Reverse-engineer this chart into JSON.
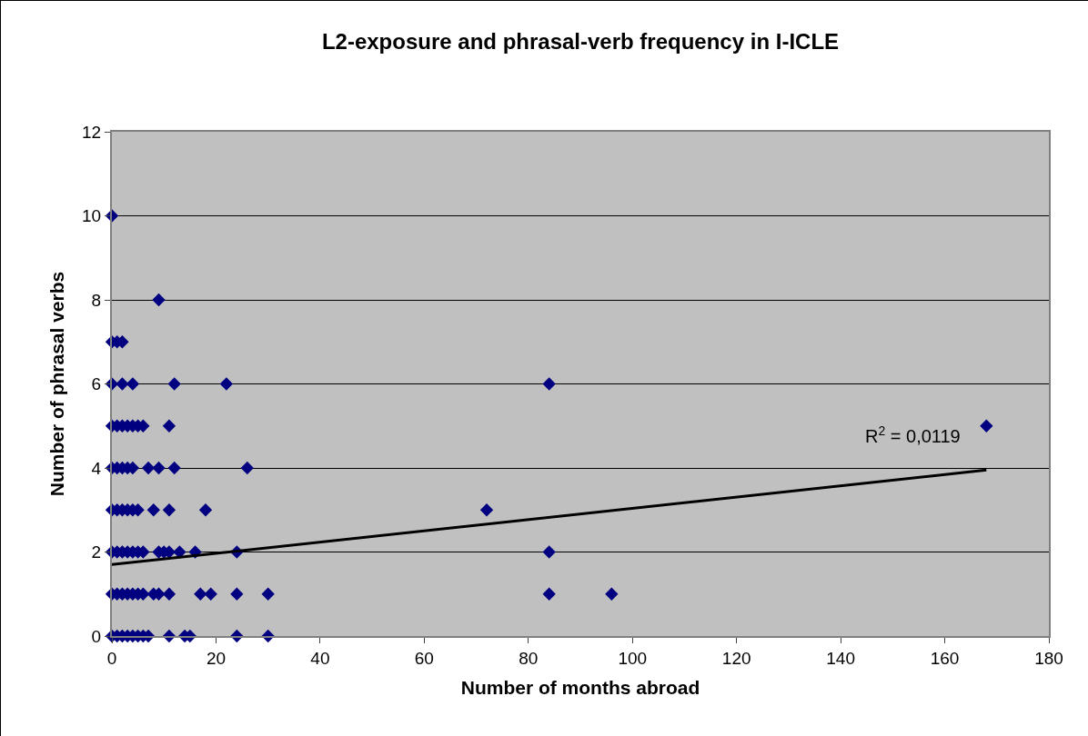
{
  "chart_data": {
    "type": "scatter",
    "title": "L2-exposure and phrasal-verb frequency in I-ICLE",
    "xlabel": "Number of months abroad",
    "ylabel": "Number of phrasal verbs",
    "series": [
      {
        "color": "#000080",
        "x": [
          0,
          1,
          2,
          3,
          4,
          5,
          6,
          7,
          11,
          14,
          15,
          24,
          30,
          0,
          1,
          2,
          3,
          4,
          5,
          6,
          8,
          9,
          11,
          17,
          19,
          24,
          30,
          84,
          96,
          0,
          1,
          2,
          3,
          4,
          5,
          6,
          9,
          10,
          11,
          13,
          16,
          24,
          84,
          0,
          1,
          2,
          3,
          4,
          5,
          8,
          11,
          18,
          72,
          0,
          1,
          2,
          3,
          4,
          7,
          9,
          12,
          26,
          0,
          1,
          2,
          3,
          4,
          5,
          6,
          11,
          168,
          0,
          2,
          4,
          12,
          22,
          84,
          0,
          1,
          2,
          9,
          0
        ],
        "values": [
          0,
          0,
          0,
          0,
          0,
          0,
          0,
          0,
          0,
          0,
          0,
          0,
          0,
          1,
          1,
          1,
          1,
          1,
          1,
          1,
          1,
          1,
          1,
          1,
          1,
          1,
          1,
          1,
          1,
          2,
          2,
          2,
          2,
          2,
          2,
          2,
          2,
          2,
          2,
          2,
          2,
          2,
          2,
          3,
          3,
          3,
          3,
          3,
          3,
          3,
          3,
          3,
          3,
          4,
          4,
          4,
          4,
          4,
          4,
          4,
          4,
          4,
          5,
          5,
          5,
          5,
          5,
          5,
          5,
          5,
          5,
          6,
          6,
          6,
          6,
          6,
          6,
          7,
          7,
          7,
          8,
          10
        ]
      },
      {
        "type": "line",
        "marker": "none",
        "color": "#000000",
        "x": [
          0,
          168
        ],
        "values": [
          1.7,
          3.95
        ]
      }
    ],
    "annotations": [
      "R$^{2}$ = 0,0119"
    ],
    "xlim": [
      0,
      180
    ],
    "xticks": [
      0,
      20,
      40,
      60,
      80,
      100,
      120,
      140,
      160,
      180
    ],
    "ylim": [
      0,
      12
    ],
    "yticks": [
      0,
      2,
      4,
      6,
      8,
      10,
      12
    ],
    "grid": "y",
    "legend": false,
    "marker": "diamond",
    "line_style": "solid"
  }
}
